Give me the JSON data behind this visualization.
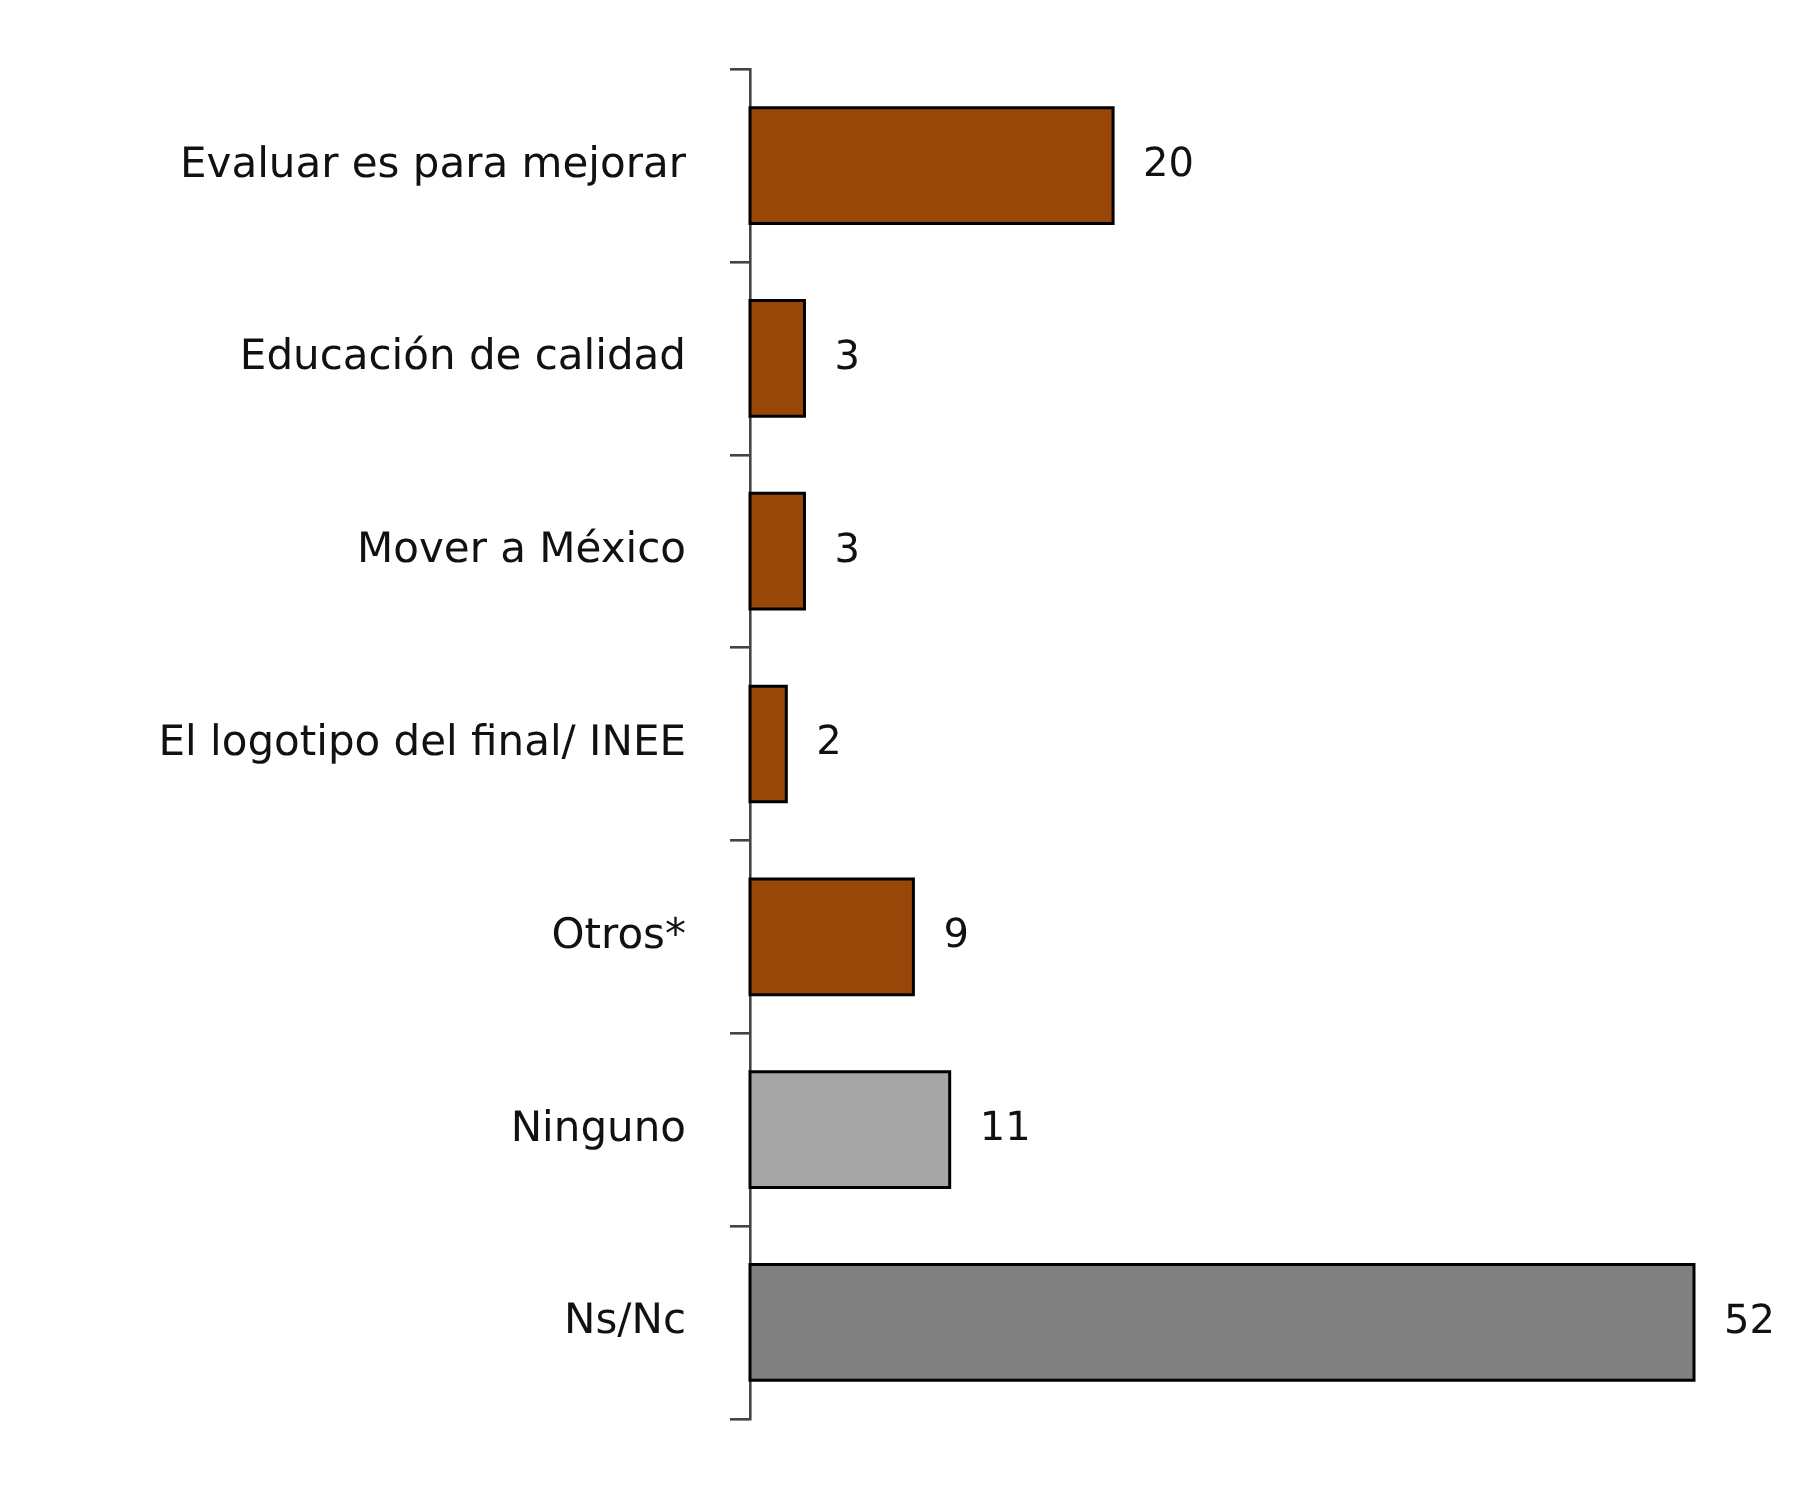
{
  "chart_data": {
    "type": "bar",
    "orientation": "horizontal",
    "categories": [
      "Evaluar es para mejorar",
      "Educación de calidad",
      "Mover a México",
      "El logotipo del final/ INEE",
      "Otros*",
      "Ninguno",
      "Ns/Nc"
    ],
    "values": [
      20,
      3,
      3,
      2,
      9,
      11,
      52
    ],
    "colors": [
      "#994708",
      "#994708",
      "#994708",
      "#994708",
      "#994708",
      "#a6a6a6",
      "#808080"
    ],
    "data_labels": true,
    "tick_labels": "y"
  }
}
